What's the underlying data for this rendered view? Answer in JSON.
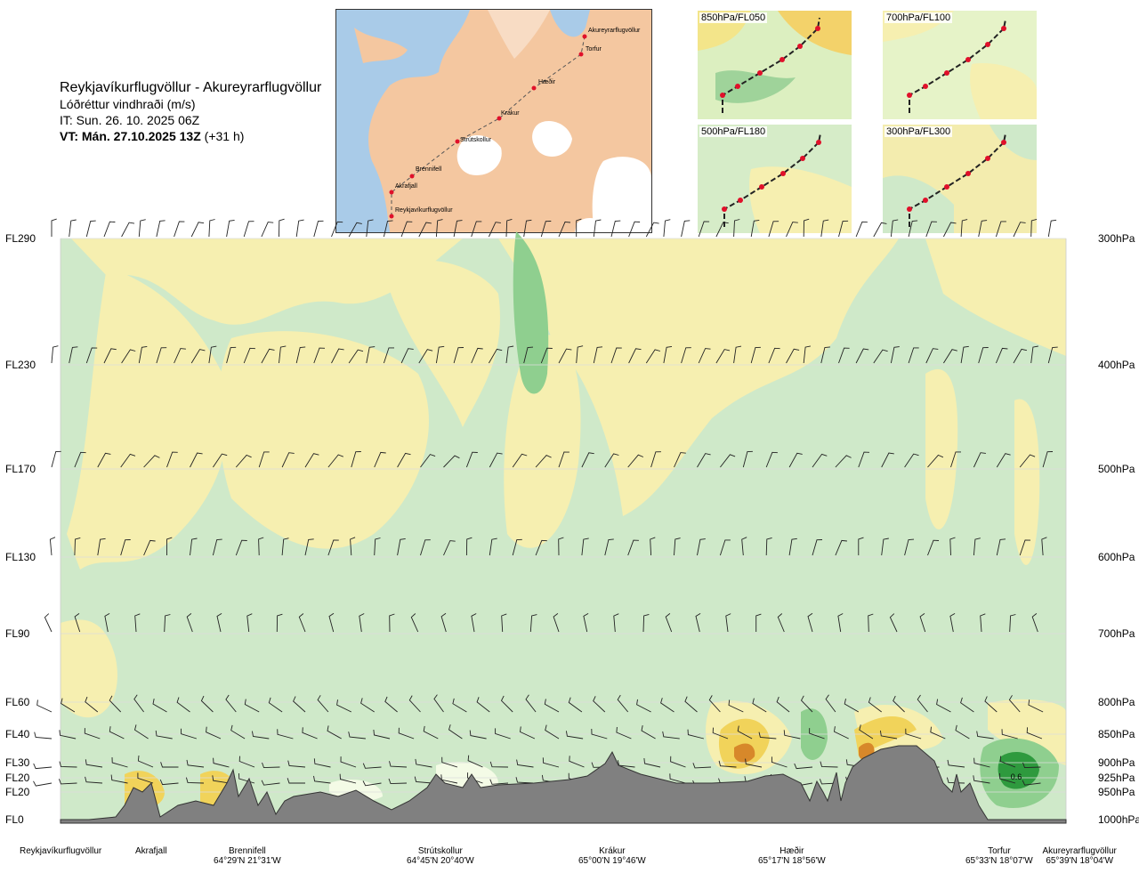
{
  "header": {
    "route": "Reykjavíkurflugvöllur - Akureyrarflugvöllur",
    "subtitle": "Lóðréttur vindhraði (m/s)",
    "issue_time": "IT: Sun. 26. 10. 2025 06Z",
    "valid_time_bold": "VT: Mán. 27.10.2025 13Z",
    "valid_time_offset": "(+31 h)"
  },
  "route_map": {
    "labels": [
      "Akureyrarflugvöllur",
      "Torfur",
      "Hæðir",
      "Krákur",
      "Strútskollur",
      "Brennifell",
      "Akrafjall",
      "Reykjavíkurflugvöllur"
    ],
    "colors": {
      "land": "#f4c7a0",
      "water": "#a9cbe8",
      "glacier": "#ffffff",
      "route": "#b30000"
    }
  },
  "thumbnails": [
    {
      "label": "850hPa/FL050"
    },
    {
      "label": "700hPa/FL100"
    },
    {
      "label": "500hPa/FL180"
    },
    {
      "label": "300hPa/FL300"
    }
  ],
  "chart_data": {
    "type": "heatmap",
    "title": "Lóðréttur vindhraði (m/s)",
    "y_levels": [
      {
        "fl": "FL290",
        "hpa": "300hPa"
      },
      {
        "fl": "FL230",
        "hpa": "400hPa"
      },
      {
        "fl": "FL170",
        "hpa": "500hPa"
      },
      {
        "fl": "FL130",
        "hpa": "600hPa"
      },
      {
        "fl": "FL90",
        "hpa": "700hPa"
      },
      {
        "fl": "FL60",
        "hpa": "800hPa"
      },
      {
        "fl": "FL40",
        "hpa": "850hPa"
      },
      {
        "fl": "FL30",
        "hpa": "900hPa"
      },
      {
        "fl": "FL20",
        "hpa": "925hPa"
      },
      {
        "fl": "FL20",
        "hpa": "950hPa"
      },
      {
        "fl": "FL0",
        "hpa": "1000hPa"
      }
    ],
    "waypoints": [
      {
        "name": "Reykjavíkurflugvöllur",
        "coord": ""
      },
      {
        "name": "Akrafjall",
        "coord": ""
      },
      {
        "name": "Brennifell",
        "coord": "64°29'N 21°31'W"
      },
      {
        "name": "Strútskollur",
        "coord": "64°45'N 20°40'W"
      },
      {
        "name": "Krákur",
        "coord": "65°00'N 19°46'W"
      },
      {
        "name": "Hæðir",
        "coord": "65°17'N 18°56'W"
      },
      {
        "name": "Torfur",
        "coord": "65°33'N 18°07'W"
      },
      {
        "name": "Akureyrarflugvöllur",
        "coord": "65°39'N 18°04'W"
      }
    ],
    "annotation": "0.6",
    "colors": {
      "neg_weak": "#f6efb0",
      "neg_mid": "#f1d35a",
      "neg_strong": "#d7882a",
      "pos_weak": "#cfe9c9",
      "pos_mid": "#8fcf8f",
      "pos_strong": "#2e9a3e",
      "near_zero": "#f4fbe6",
      "terrain": "#808080"
    }
  }
}
